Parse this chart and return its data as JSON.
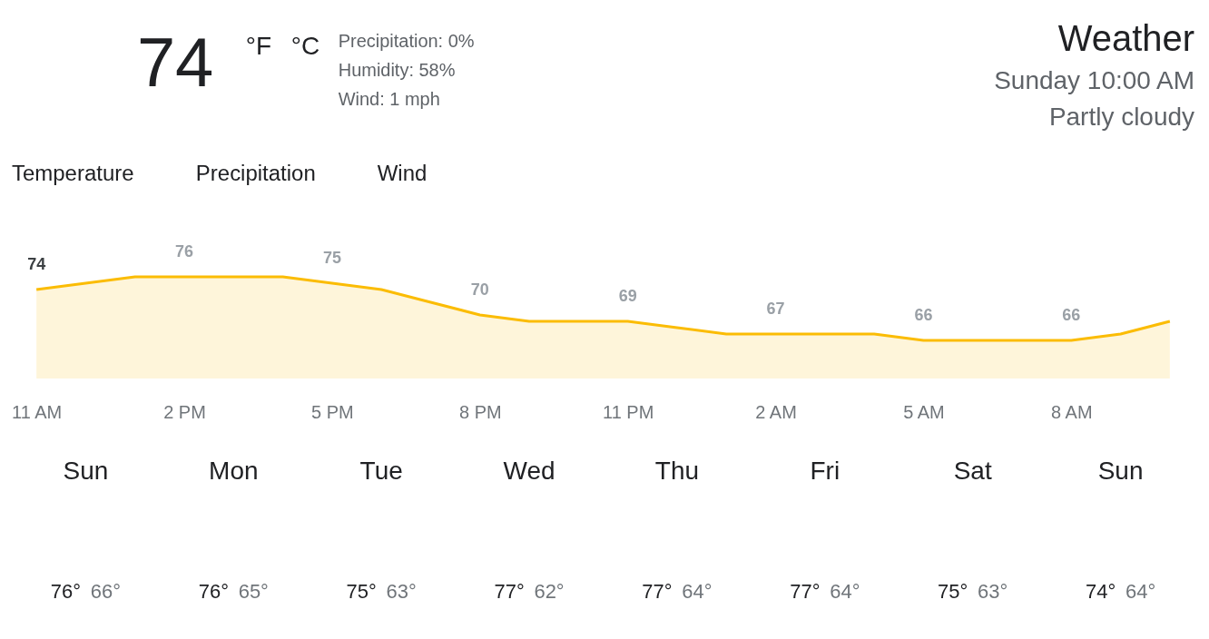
{
  "chart_data": [
    {
      "type": "other",
      "title": "Weather",
      "annotations": [
        "74",
        "°F",
        "°C",
        "Precipitation: 0%",
        "Humidity: 58%",
        "Wind: 1 mph",
        "Sunday 10:00 AM",
        "Partly cloudy",
        "Temperature",
        "Precipitation",
        "Wind"
      ]
    },
    {
      "type": "area",
      "color": "#fbbc04",
      "tick_labels": "x",
      "categories": [
        "11 AM",
        null,
        null,
        "2 PM",
        null,
        null,
        "5 PM",
        null,
        null,
        "8 PM",
        null,
        null,
        "11 PM",
        null,
        null,
        "2 AM",
        null,
        null,
        "5 AM",
        null,
        null,
        "8 AM",
        null,
        null
      ],
      "values": [
        74,
        75,
        76,
        76,
        76,
        76,
        75,
        74,
        72,
        70,
        69,
        69,
        69,
        68,
        67,
        67,
        67,
        67,
        66,
        66,
        66,
        66,
        67,
        69
      ],
      "value_labels": [
        "74",
        null,
        null,
        "76",
        null,
        null,
        "75",
        null,
        null,
        "70",
        null,
        null,
        "69",
        null,
        null,
        "67",
        null,
        null,
        "66",
        null,
        null,
        "66",
        null,
        null
      ]
    },
    {
      "type": "other",
      "categories": [
        "Sun",
        "Mon",
        "Tue",
        "Wed",
        "Thu",
        "Fri",
        "Sat",
        "Sun"
      ],
      "series": [
        {
          "color": "#202124",
          "values": [
            76,
            76,
            75,
            77,
            77,
            77,
            75,
            74
          ],
          "value_labels": [
            "76°",
            "76°",
            "75°",
            "77°",
            "77°",
            "77°",
            "75°",
            "74°"
          ]
        },
        {
          "color": "#70757a",
          "values": [
            66,
            65,
            63,
            62,
            64,
            64,
            63,
            64
          ],
          "value_labels": [
            "66°",
            "65°",
            "63°",
            "62°",
            "64°",
            "64°",
            "63°",
            "64°"
          ]
        }
      ]
    }
  ]
}
